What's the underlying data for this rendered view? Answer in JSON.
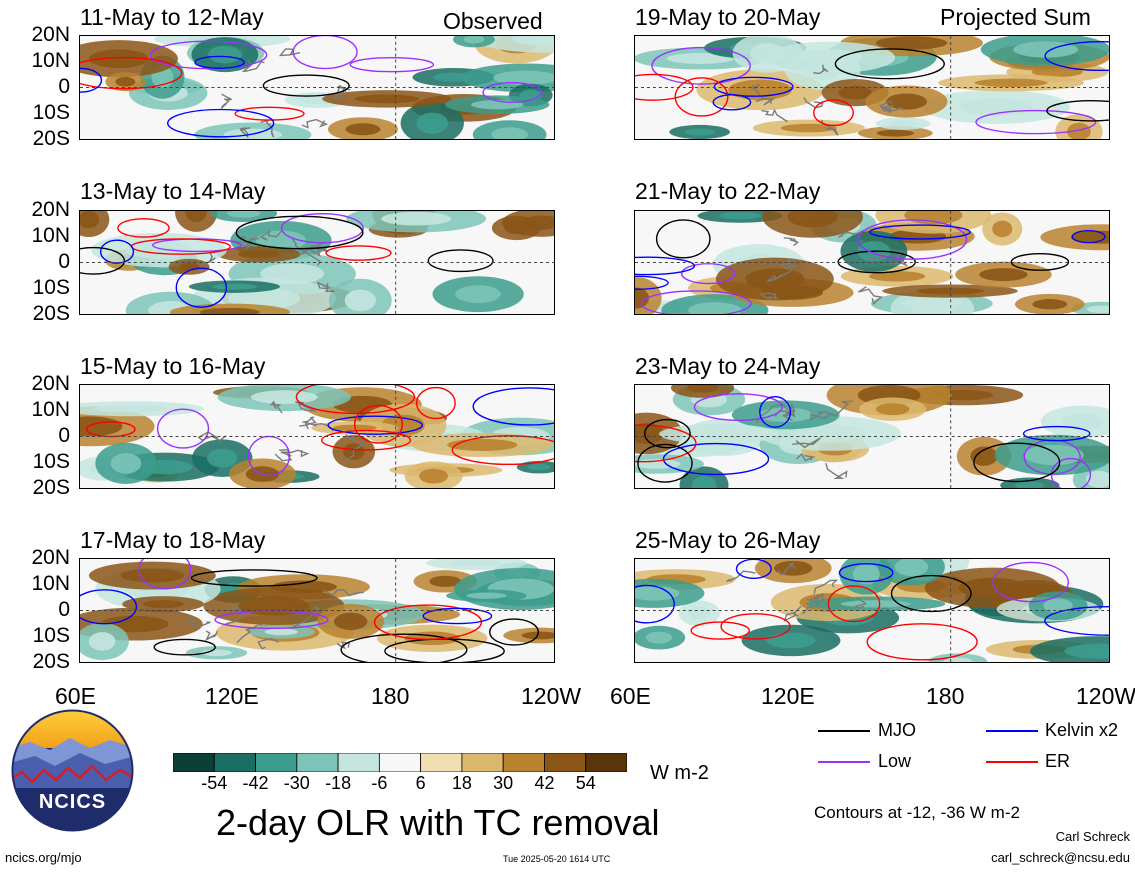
{
  "panels_left": [
    {
      "title": "11-May to 12-May",
      "tag": "Observed"
    },
    {
      "title": "13-May to 14-May",
      "tag": ""
    },
    {
      "title": "15-May to 16-May",
      "tag": ""
    },
    {
      "title": "17-May to 18-May",
      "tag": ""
    }
  ],
  "panels_right": [
    {
      "title": "19-May to 20-May",
      "tag": "Projected Sum"
    },
    {
      "title": "21-May to 22-May",
      "tag": ""
    },
    {
      "title": "23-May to 24-May",
      "tag": ""
    },
    {
      "title": "25-May to 26-May",
      "tag": ""
    }
  ],
  "lat_labels": [
    "20N",
    "10N",
    "0",
    "10S",
    "20S"
  ],
  "lon_labels": [
    "60E",
    "120E",
    "180",
    "120W"
  ],
  "lon_labels_right": [
    "60E",
    "120E",
    "180",
    "120W"
  ],
  "legend": {
    "mjo": "MJO",
    "kelvin": "Kelvin x2",
    "low": "Low",
    "er": "ER",
    "colors": {
      "mjo": "#000000",
      "kelvin": "#0000ff",
      "low": "#9b30ff",
      "er": "#ff0000"
    }
  },
  "colorbar": {
    "labels": [
      "-54",
      "-42",
      "-30",
      "-18",
      "-6",
      "6",
      "18",
      "30",
      "42",
      "54"
    ],
    "colors": [
      "#0b3f36",
      "#1a6e63",
      "#3c9c8d",
      "#7cc4b7",
      "#c4e6df",
      "#f7f7f7",
      "#f1dfb1",
      "#dcb86f",
      "#b9822f",
      "#8a5517",
      "#5a350c"
    ],
    "units": "W m-2"
  },
  "logo_text": "NCICS",
  "main_title": "2-day OLR with TC removal",
  "contours_note": "Contours at -12, -36 W m-2",
  "author": "Carl Schreck",
  "email": "carl_schreck@ncsu.edu",
  "url": "ncics.org/mjo",
  "timestamp": "Tue 2025-05-20 1614 UTC"
}
